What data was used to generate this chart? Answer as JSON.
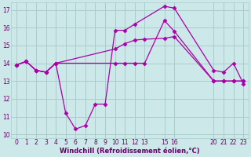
{
  "bg_color": "#cce8e8",
  "grid_color": "#aacccc",
  "line_color": "#aa00aa",
  "marker_color": "#aa00aa",
  "xlabel": "Windchill (Refroidissement éolien,°C)",
  "xlim": [
    -0.5,
    23.5
  ],
  "ylim": [
    9.8,
    17.4
  ],
  "xticks": [
    0,
    1,
    2,
    3,
    4,
    5,
    6,
    7,
    8,
    9,
    10,
    11,
    12,
    13,
    15,
    16,
    20,
    21,
    22,
    23
  ],
  "yticks": [
    10,
    11,
    12,
    13,
    14,
    15,
    16,
    17
  ],
  "series": [
    {
      "x": [
        0,
        1,
        2,
        3,
        4,
        5,
        6,
        7,
        8,
        9,
        10,
        11,
        12,
        15,
        16,
        20,
        21,
        22,
        23
      ],
      "y": [
        13.9,
        14.1,
        13.6,
        13.5,
        14.0,
        11.2,
        10.3,
        10.5,
        11.7,
        11.7,
        15.85,
        15.85,
        16.2,
        17.2,
        17.1,
        13.6,
        13.5,
        14.0,
        12.85
      ],
      "has_marker": true,
      "linestyle": "-"
    },
    {
      "x": [
        0,
        1,
        2,
        3,
        4,
        10,
        11,
        12,
        13,
        15,
        16,
        20,
        21,
        22,
        23
      ],
      "y": [
        13.9,
        14.1,
        13.6,
        13.5,
        14.0,
        14.0,
        14.0,
        14.0,
        14.0,
        16.4,
        15.8,
        13.0,
        13.0,
        13.0,
        13.0
      ],
      "has_marker": true,
      "linestyle": "-"
    },
    {
      "x": [
        0,
        1,
        2,
        3,
        4,
        10,
        11,
        12,
        13,
        15,
        16,
        20,
        21,
        22,
        23
      ],
      "y": [
        13.9,
        14.1,
        13.6,
        13.5,
        14.0,
        14.8,
        15.1,
        15.3,
        15.35,
        15.4,
        15.5,
        13.0,
        13.0,
        13.0,
        13.0
      ],
      "has_marker": true,
      "linestyle": "-"
    }
  ]
}
